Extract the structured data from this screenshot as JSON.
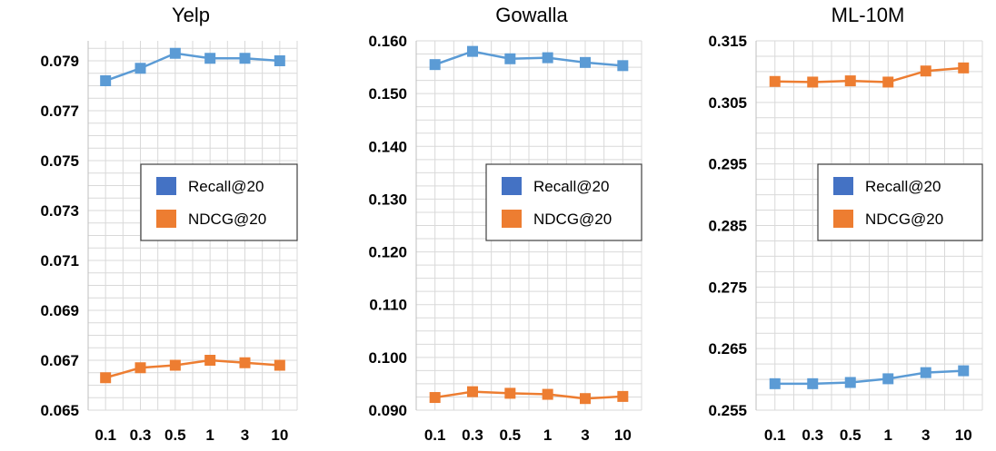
{
  "legend_labels": [
    "Recall@20",
    "NDCG@20"
  ],
  "colors": {
    "recall": "#5B9BD5",
    "ndcg": "#ED7D31",
    "legend_recall": "#4472C4",
    "legend_ndcg": "#ED7D31",
    "grid": "#D9D9D9"
  },
  "chart_data": [
    {
      "type": "line",
      "title": "Yelp",
      "categories": [
        "0.1",
        "0.3",
        "0.5",
        "1",
        "3",
        "10"
      ],
      "ylim": [
        0.065,
        0.0798
      ],
      "yticks": [
        "0.065",
        "0.067",
        "0.069",
        "0.071",
        "0.073",
        "0.075",
        "0.077",
        "0.079"
      ],
      "series": [
        {
          "name": "Recall@20",
          "values": [
            0.0782,
            0.0787,
            0.0793,
            0.0791,
            0.0791,
            0.079
          ]
        },
        {
          "name": "NDCG@20",
          "values": [
            0.0663,
            0.0667,
            0.0668,
            0.067,
            0.0669,
            0.0668
          ]
        }
      ],
      "legend": "center-right"
    },
    {
      "type": "line",
      "title": "Gowalla",
      "categories": [
        "0.1",
        "0.3",
        "0.5",
        "1",
        "3",
        "10"
      ],
      "ylim": [
        0.09,
        0.16
      ],
      "yticks": [
        "0.090",
        "0.100",
        "0.110",
        "0.120",
        "0.130",
        "0.140",
        "0.150",
        "0.160"
      ],
      "series": [
        {
          "name": "Recall@20",
          "values": [
            0.1555,
            0.158,
            0.1566,
            0.1568,
            0.1559,
            0.1553
          ]
        },
        {
          "name": "NDCG@20",
          "values": [
            0.0924,
            0.0935,
            0.0932,
            0.093,
            0.0922,
            0.0926
          ]
        }
      ],
      "legend": "center-right"
    },
    {
      "type": "line",
      "title": "ML-10M",
      "categories": [
        "0.1",
        "0.3",
        "0.5",
        "1",
        "3",
        "10"
      ],
      "ylim": [
        0.255,
        0.315
      ],
      "yticks": [
        "0.255",
        "0.265",
        "0.275",
        "0.285",
        "0.295",
        "0.305",
        "0.315"
      ],
      "series": [
        {
          "name": "Recall@20",
          "values": [
            0.2593,
            0.2593,
            0.2595,
            0.2601,
            0.2611,
            0.2614
          ]
        },
        {
          "name": "NDCG@20",
          "values": [
            0.3084,
            0.3083,
            0.3085,
            0.3083,
            0.3101,
            0.3106
          ]
        }
      ],
      "legend": "center-right"
    }
  ]
}
